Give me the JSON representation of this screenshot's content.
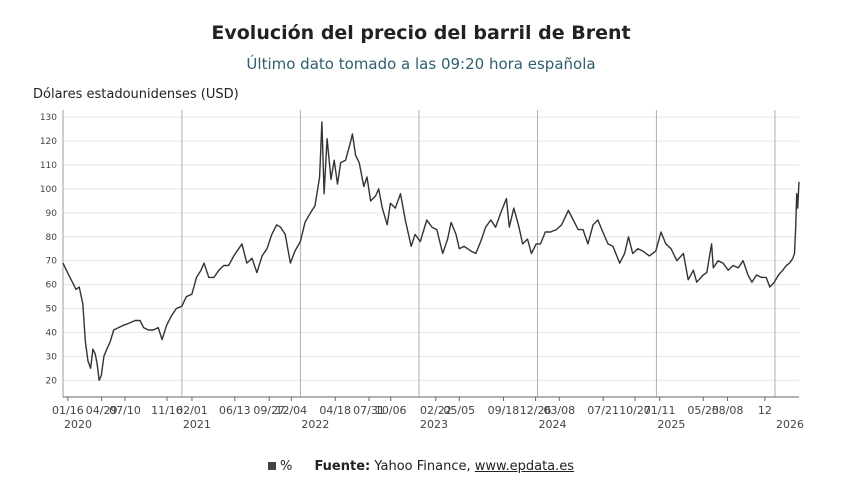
{
  "header": {
    "title": "Evolución del precio del barril de Brent",
    "subtitle": "Último dato tomado a las 09:20 hora española"
  },
  "footer": {
    "legend_label": "%",
    "source_label": "Fuente:",
    "source_text": "Yahoo Finance,",
    "source_link": "www.epdata.es"
  },
  "colors": {
    "line": "#333333",
    "grid": "#e6e6e6",
    "year_line": "#b0b0b0",
    "subtitle": "#2f5f6e"
  },
  "chart_data": {
    "type": "line",
    "ylabel": "Dólares estadounidenses (USD)",
    "ylim": [
      13,
      133
    ],
    "yticks": [
      20,
      30,
      40,
      50,
      60,
      70,
      80,
      90,
      100,
      110,
      120,
      130
    ],
    "grid": true,
    "xlim": [
      "2020-01-01",
      "2026-03-16"
    ],
    "x_tick_labels": [
      {
        "x": "2020-01-16",
        "label": "01/16"
      },
      {
        "x": "2020-04-29",
        "label": "04/29"
      },
      {
        "x": "2020-07-10",
        "label": "07/10"
      },
      {
        "x": "2020-11-16",
        "label": "11/16"
      },
      {
        "x": "2021-02-01",
        "label": "02/01"
      },
      {
        "x": "2021-06-13",
        "label": "06/13"
      },
      {
        "x": "2021-09-27",
        "label": "09/27"
      },
      {
        "x": "2021-12-04",
        "label": "12/04"
      },
      {
        "x": "2022-04-18",
        "label": "04/18"
      },
      {
        "x": "2022-07-31",
        "label": "07/31"
      },
      {
        "x": "2022-10-06",
        "label": "10/06"
      },
      {
        "x": "2023-02-22",
        "label": "02/22"
      },
      {
        "x": "2023-05-05",
        "label": "05/05"
      },
      {
        "x": "2023-09-18",
        "label": "09/18"
      },
      {
        "x": "2023-12-26",
        "label": "12/26"
      },
      {
        "x": "2024-03-08",
        "label": "03/08"
      },
      {
        "x": "2024-07-21",
        "label": "07/21"
      },
      {
        "x": "2024-10-27",
        "label": "10/27"
      },
      {
        "x": "2025-01-11",
        "label": "01/11"
      },
      {
        "x": "2025-05-25",
        "label": "05/25"
      },
      {
        "x": "2025-08-08",
        "label": "08/08"
      },
      {
        "x": "2025-12-01",
        "label": "12"
      }
    ],
    "year_labels": [
      {
        "x": "2020-01-01",
        "label": "2020"
      },
      {
        "x": "2021-01-01",
        "label": "2021"
      },
      {
        "x": "2022-01-01",
        "label": "2022"
      },
      {
        "x": "2023-01-01",
        "label": "2023"
      },
      {
        "x": "2024-01-01",
        "label": "2024"
      },
      {
        "x": "2025-01-01",
        "label": "2025"
      },
      {
        "x": "2026-01-01",
        "label": "2026"
      }
    ],
    "series": [
      {
        "values": [
          [
            "2020-01-01",
            69
          ],
          [
            "2020-01-15",
            65
          ],
          [
            "2020-01-30",
            61
          ],
          [
            "2020-02-10",
            58
          ],
          [
            "2020-02-20",
            59
          ],
          [
            "2020-03-02",
            52
          ],
          [
            "2020-03-10",
            36
          ],
          [
            "2020-03-18",
            28
          ],
          [
            "2020-03-26",
            25
          ],
          [
            "2020-04-02",
            33
          ],
          [
            "2020-04-09",
            31
          ],
          [
            "2020-04-15",
            27
          ],
          [
            "2020-04-21",
            20
          ],
          [
            "2020-04-28",
            22
          ],
          [
            "2020-05-06",
            30
          ],
          [
            "2020-05-15",
            33
          ],
          [
            "2020-05-25",
            36
          ],
          [
            "2020-06-05",
            41
          ],
          [
            "2020-06-20",
            42
          ],
          [
            "2020-07-05",
            43
          ],
          [
            "2020-07-25",
            44
          ],
          [
            "2020-08-10",
            45
          ],
          [
            "2020-08-25",
            45
          ],
          [
            "2020-09-05",
            42
          ],
          [
            "2020-09-20",
            41
          ],
          [
            "2020-10-05",
            41
          ],
          [
            "2020-10-20",
            42
          ],
          [
            "2020-11-01",
            37
          ],
          [
            "2020-11-15",
            43
          ],
          [
            "2020-11-30",
            47
          ],
          [
            "2020-12-15",
            50
          ],
          [
            "2021-01-01",
            51
          ],
          [
            "2021-01-15",
            55
          ],
          [
            "2021-02-01",
            56
          ],
          [
            "2021-02-15",
            63
          ],
          [
            "2021-03-01",
            66
          ],
          [
            "2021-03-10",
            69
          ],
          [
            "2021-03-25",
            63
          ],
          [
            "2021-04-10",
            63
          ],
          [
            "2021-04-25",
            66
          ],
          [
            "2021-05-10",
            68
          ],
          [
            "2021-05-25",
            68
          ],
          [
            "2021-06-10",
            72
          ],
          [
            "2021-06-25",
            75
          ],
          [
            "2021-07-05",
            77
          ],
          [
            "2021-07-20",
            69
          ],
          [
            "2021-08-05",
            71
          ],
          [
            "2021-08-20",
            65
          ],
          [
            "2021-09-05",
            72
          ],
          [
            "2021-09-20",
            75
          ],
          [
            "2021-10-05",
            81
          ],
          [
            "2021-10-20",
            85
          ],
          [
            "2021-11-01",
            84
          ],
          [
            "2021-11-15",
            81
          ],
          [
            "2021-12-01",
            69
          ],
          [
            "2021-12-15",
            74
          ],
          [
            "2022-01-01",
            78
          ],
          [
            "2022-01-15",
            86
          ],
          [
            "2022-02-01",
            90
          ],
          [
            "2022-02-15",
            93
          ],
          [
            "2022-03-01",
            105
          ],
          [
            "2022-03-08",
            128
          ],
          [
            "2022-03-15",
            98
          ],
          [
            "2022-03-24",
            121
          ],
          [
            "2022-04-05",
            104
          ],
          [
            "2022-04-15",
            112
          ],
          [
            "2022-04-25",
            102
          ],
          [
            "2022-05-05",
            111
          ],
          [
            "2022-05-20",
            112
          ],
          [
            "2022-06-05",
            120
          ],
          [
            "2022-06-10",
            123
          ],
          [
            "2022-06-20",
            114
          ],
          [
            "2022-07-01",
            111
          ],
          [
            "2022-07-15",
            101
          ],
          [
            "2022-07-25",
            105
          ],
          [
            "2022-08-05",
            95
          ],
          [
            "2022-08-20",
            97
          ],
          [
            "2022-08-30",
            100
          ],
          [
            "2022-09-10",
            92
          ],
          [
            "2022-09-25",
            85
          ],
          [
            "2022-10-05",
            94
          ],
          [
            "2022-10-20",
            92
          ],
          [
            "2022-11-05",
            98
          ],
          [
            "2022-11-20",
            87
          ],
          [
            "2022-12-08",
            76
          ],
          [
            "2022-12-20",
            81
          ],
          [
            "2023-01-05",
            78
          ],
          [
            "2023-01-25",
            87
          ],
          [
            "2023-02-10",
            84
          ],
          [
            "2023-02-25",
            83
          ],
          [
            "2023-03-15",
            73
          ],
          [
            "2023-03-30",
            79
          ],
          [
            "2023-04-10",
            86
          ],
          [
            "2023-04-25",
            81
          ],
          [
            "2023-05-05",
            75
          ],
          [
            "2023-05-20",
            76
          ],
          [
            "2023-06-10",
            74
          ],
          [
            "2023-06-25",
            73
          ],
          [
            "2023-07-10",
            78
          ],
          [
            "2023-07-25",
            84
          ],
          [
            "2023-08-10",
            87
          ],
          [
            "2023-08-25",
            84
          ],
          [
            "2023-09-10",
            90
          ],
          [
            "2023-09-27",
            96
          ],
          [
            "2023-10-06",
            84
          ],
          [
            "2023-10-20",
            92
          ],
          [
            "2023-11-05",
            84
          ],
          [
            "2023-11-16",
            77
          ],
          [
            "2023-12-01",
            79
          ],
          [
            "2023-12-13",
            73
          ],
          [
            "2023-12-28",
            77
          ],
          [
            "2024-01-10",
            77
          ],
          [
            "2024-01-25",
            82
          ],
          [
            "2024-02-10",
            82
          ],
          [
            "2024-02-28",
            83
          ],
          [
            "2024-03-15",
            85
          ],
          [
            "2024-04-05",
            91
          ],
          [
            "2024-04-20",
            87
          ],
          [
            "2024-05-05",
            83
          ],
          [
            "2024-05-20",
            83
          ],
          [
            "2024-06-04",
            77
          ],
          [
            "2024-06-20",
            85
          ],
          [
            "2024-07-05",
            87
          ],
          [
            "2024-07-20",
            82
          ],
          [
            "2024-08-05",
            77
          ],
          [
            "2024-08-20",
            76
          ],
          [
            "2024-09-10",
            69
          ],
          [
            "2024-09-25",
            73
          ],
          [
            "2024-10-07",
            80
          ],
          [
            "2024-10-20",
            73
          ],
          [
            "2024-11-05",
            75
          ],
          [
            "2024-11-20",
            74
          ],
          [
            "2024-12-10",
            72
          ],
          [
            "2024-12-30",
            74
          ],
          [
            "2025-01-15",
            82
          ],
          [
            "2025-01-30",
            77
          ],
          [
            "2025-02-15",
            75
          ],
          [
            "2025-03-05",
            70
          ],
          [
            "2025-03-25",
            73
          ],
          [
            "2025-04-09",
            62
          ],
          [
            "2025-04-25",
            66
          ],
          [
            "2025-05-05",
            61
          ],
          [
            "2025-05-25",
            64
          ],
          [
            "2025-06-05",
            65
          ],
          [
            "2025-06-20",
            77
          ],
          [
            "2025-06-25",
            67
          ],
          [
            "2025-07-10",
            70
          ],
          [
            "2025-07-25",
            69
          ],
          [
            "2025-08-10",
            66
          ],
          [
            "2025-08-25",
            68
          ],
          [
            "2025-09-10",
            67
          ],
          [
            "2025-09-25",
            70
          ],
          [
            "2025-10-10",
            64
          ],
          [
            "2025-10-22",
            61
          ],
          [
            "2025-11-05",
            64
          ],
          [
            "2025-11-20",
            63
          ],
          [
            "2025-12-05",
            63
          ],
          [
            "2025-12-16",
            59
          ],
          [
            "2025-12-30",
            61
          ],
          [
            "2026-01-12",
            64
          ],
          [
            "2026-01-25",
            66
          ],
          [
            "2026-02-05",
            68
          ],
          [
            "2026-02-15",
            69
          ],
          [
            "2026-02-25",
            71
          ],
          [
            "2026-03-02",
            73
          ],
          [
            "2026-03-06",
            85
          ],
          [
            "2026-03-09",
            98
          ],
          [
            "2026-03-12",
            92
          ],
          [
            "2026-03-16",
            103
          ]
        ]
      }
    ]
  }
}
